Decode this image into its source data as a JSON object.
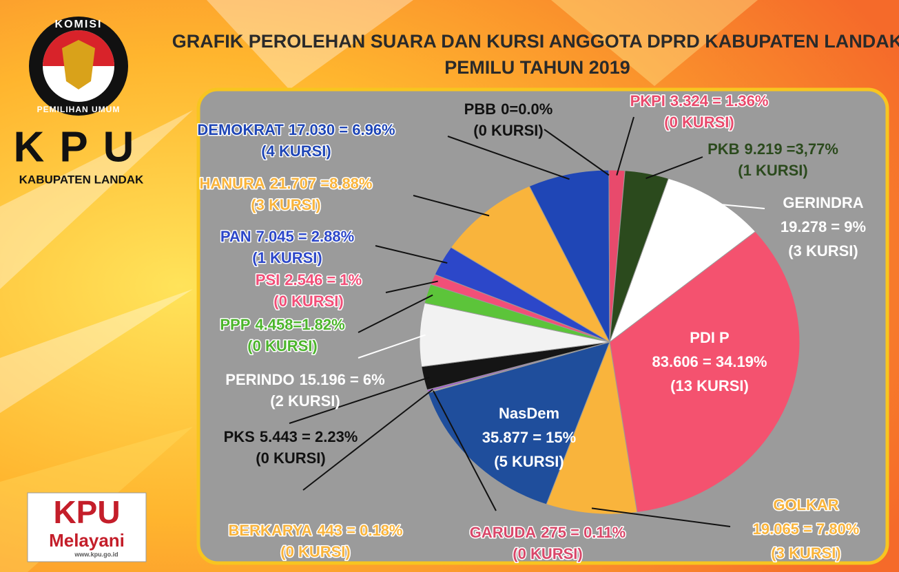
{
  "logo": {
    "top": "KOMISI",
    "bottom": "PEMILIHAN UMUM",
    "name": "KPU",
    "region": "KABUPATEN LANDAK",
    "badge_top": "KPU",
    "badge_bottom": "Melayani",
    "badge_url": "www.kpu.go.id"
  },
  "chart_data": {
    "type": "pie",
    "title": "GRAFIK PEROLEHAN SUARA DAN KURSI ANGGOTA DPRD KABUPATEN LANDAK",
    "subtitle": "PEMILU TAHUN 2019",
    "categories": [
      "PKPI",
      "PKB",
      "GERINDRA",
      "PDI P",
      "GOLKAR",
      "NasDem",
      "GARUDA",
      "BERKARYA",
      "PKS",
      "PERINDO",
      "PPP",
      "PSI",
      "PAN",
      "HANURA",
      "DEMOKRAT",
      "PBB"
    ],
    "values": [
      1.36,
      3.77,
      9,
      34.19,
      7.8,
      15,
      0.11,
      0.18,
      2.23,
      6,
      1.82,
      1,
      2.88,
      8.88,
      6.96,
      0
    ],
    "value_labels": [
      "3.324 = 1.36%",
      "9.219 =3,77%",
      "19.278 = 9%",
      "83.606 = 34.19%",
      "19.065 = 7.80%",
      "35.877 = 15%",
      "275 = 0.11%",
      "443 = 0.18%",
      "5.443 = 2.23%",
      "15.196 = 6%",
      "4.458=1.82%",
      "2.546 = 1%",
      "7.045 = 2.88%",
      "21.707 =8.88%",
      "17.030 = 6.96%",
      "0=0.0%"
    ],
    "seat_labels": [
      "(0 KURSI)",
      "(1 KURSI)",
      "(3 KURSI)",
      "(13 KURSI)",
      "(3 KURSI)",
      "(5 KURSI)",
      "(0 KURSI)",
      "(0 KURSI)",
      "(0 KURSI)",
      "(2 KURSI)",
      "(0 KURSI)",
      "(0 KURSI)",
      "(1 KURSI)",
      "(3 KURSI)",
      "(4 KURSI)",
      "(0 KURSI)"
    ],
    "colors": [
      "#e84a6c",
      "#2b4a1d",
      "#ffffff",
      "#f4526f",
      "#f9b43c",
      "#1f4e9c",
      "#b8b8b8",
      "#a456d6",
      "#151515",
      "#f2f2f2",
      "#5cc43a",
      "#f14f78",
      "#2c47c9",
      "#f9b43c",
      "#1f46b6",
      "#333333"
    ],
    "label_colors": [
      "#e84a6c",
      "#2b4a1d",
      "#ffffff",
      "#ffffff",
      "#f9b43c",
      "#ffffff",
      "#d9486a",
      "#f9b43c",
      "#111111",
      "#ffffff",
      "#4cb52c",
      "#f14f78",
      "#2c47c9",
      "#f9b43c",
      "#1f46b6",
      "#111111"
    ]
  }
}
